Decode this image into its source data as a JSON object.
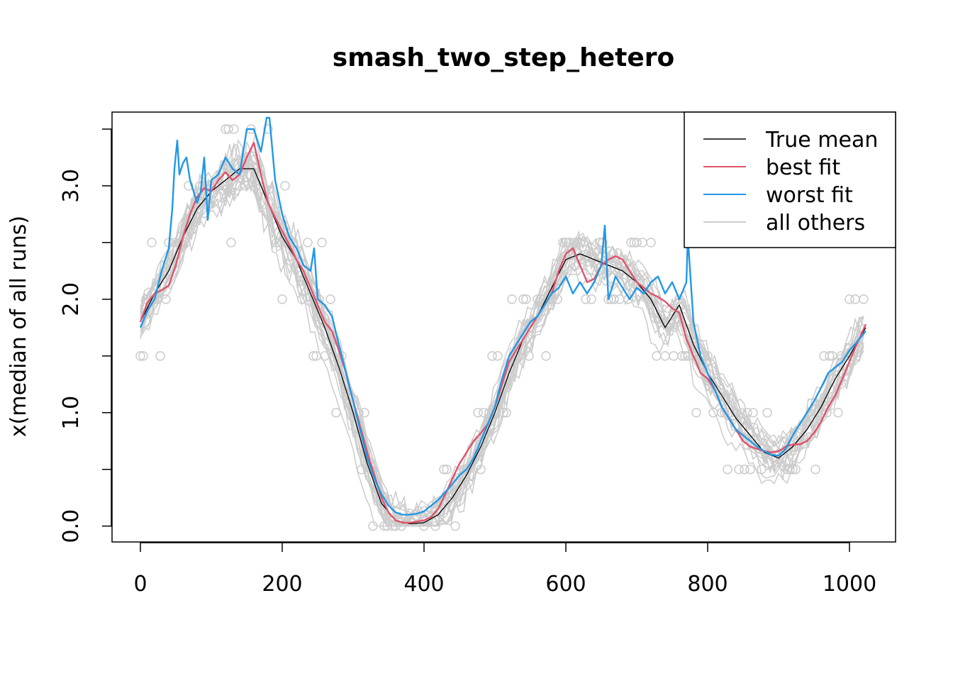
{
  "chart_data": {
    "type": "line",
    "title": "smash_two_step_hetero",
    "xlabel": "",
    "ylabel": "x(median of all runs)",
    "xlim": [
      -40,
      1065
    ],
    "ylim": [
      -0.14,
      3.65
    ],
    "x_ticks": [
      0,
      200,
      400,
      600,
      800,
      1000
    ],
    "x_tick_labels": [
      "0",
      "200",
      "400",
      "600",
      "800",
      "1000"
    ],
    "y_ticks": [
      0.0,
      0.5,
      1.0,
      1.5,
      2.0,
      2.5,
      3.0,
      3.5
    ],
    "y_tick_labels": [
      "0.0",
      "1.0",
      "2.0",
      "3.0"
    ],
    "y_labeled_ticks": [
      0.0,
      1.0,
      2.0,
      3.0
    ],
    "grid": false,
    "legend": {
      "position": "top-right",
      "entries": [
        {
          "label": "True mean",
          "color": "#000000"
        },
        {
          "label": "best fit",
          "color": "#DF536B"
        },
        {
          "label": "worst fit",
          "color": "#2297E6"
        },
        {
          "label": "all others",
          "color": "#CCCCCC"
        }
      ]
    },
    "colors": {
      "true_mean": "#000000",
      "best_fit": "#DF536B",
      "worst_fit": "#2297E6",
      "others": "#CCCCCC"
    },
    "series": [
      {
        "name": "True mean",
        "x": [
          0,
          20,
          40,
          60,
          80,
          100,
          120,
          140,
          160,
          180,
          200,
          220,
          240,
          260,
          280,
          300,
          320,
          340,
          360,
          380,
          400,
          420,
          440,
          460,
          480,
          500,
          520,
          540,
          560,
          580,
          600,
          620,
          640,
          660,
          680,
          700,
          720,
          740,
          760,
          780,
          800,
          820,
          840,
          860,
          880,
          900,
          920,
          940,
          960,
          980,
          1000,
          1023
        ],
        "values": [
          1.8,
          2.05,
          2.25,
          2.55,
          2.8,
          2.95,
          3.05,
          3.15,
          3.15,
          2.85,
          2.55,
          2.35,
          2.05,
          1.75,
          1.4,
          1.0,
          0.55,
          0.2,
          0.05,
          0.02,
          0.03,
          0.1,
          0.25,
          0.45,
          0.7,
          1.0,
          1.35,
          1.65,
          1.85,
          2.1,
          2.35,
          2.4,
          2.35,
          2.3,
          2.25,
          2.15,
          2.0,
          1.75,
          1.95,
          1.6,
          1.35,
          1.15,
          0.95,
          0.8,
          0.65,
          0.6,
          0.7,
          0.85,
          1.05,
          1.3,
          1.5,
          1.75
        ]
      },
      {
        "name": "best fit",
        "x": [
          0,
          10,
          20,
          30,
          40,
          50,
          60,
          70,
          80,
          90,
          100,
          110,
          120,
          130,
          140,
          150,
          160,
          170,
          180,
          190,
          200,
          210,
          220,
          230,
          240,
          250,
          260,
          270,
          280,
          290,
          300,
          310,
          320,
          330,
          340,
          350,
          360,
          370,
          380,
          390,
          400,
          410,
          420,
          430,
          440,
          450,
          460,
          470,
          480,
          490,
          500,
          510,
          520,
          530,
          540,
          550,
          560,
          570,
          580,
          590,
          600,
          610,
          620,
          630,
          640,
          650,
          660,
          670,
          680,
          690,
          700,
          710,
          720,
          730,
          740,
          750,
          760,
          770,
          780,
          790,
          800,
          810,
          820,
          830,
          840,
          850,
          860,
          870,
          880,
          890,
          900,
          910,
          920,
          930,
          940,
          950,
          960,
          970,
          980,
          990,
          1000,
          1010,
          1023
        ],
        "values": [
          1.8,
          1.97,
          2.05,
          2.08,
          2.12,
          2.3,
          2.55,
          2.75,
          2.9,
          2.98,
          2.95,
          3.05,
          3.12,
          3.05,
          3.1,
          3.25,
          3.38,
          3.1,
          2.85,
          2.72,
          2.6,
          2.48,
          2.35,
          2.25,
          2.1,
          1.95,
          1.8,
          1.72,
          1.55,
          1.35,
          1.1,
          0.88,
          0.65,
          0.45,
          0.25,
          0.12,
          0.05,
          0.03,
          0.03,
          0.04,
          0.05,
          0.08,
          0.15,
          0.28,
          0.42,
          0.55,
          0.65,
          0.75,
          0.82,
          0.9,
          1.05,
          1.25,
          1.45,
          1.55,
          1.65,
          1.75,
          1.85,
          1.95,
          2.05,
          2.25,
          2.4,
          2.45,
          2.3,
          2.15,
          2.18,
          2.3,
          2.35,
          2.38,
          2.35,
          2.25,
          2.15,
          2.1,
          2.05,
          2.02,
          1.98,
          1.92,
          1.88,
          1.65,
          1.5,
          1.35,
          1.3,
          1.2,
          1.05,
          0.95,
          0.85,
          0.75,
          0.7,
          0.68,
          0.66,
          0.65,
          0.66,
          0.7,
          0.72,
          0.72,
          0.75,
          0.82,
          0.92,
          1.05,
          1.15,
          1.3,
          1.45,
          1.6,
          1.78
        ]
      },
      {
        "name": "worst fit",
        "x": [
          0,
          10,
          20,
          30,
          40,
          45,
          48,
          52,
          55,
          60,
          65,
          70,
          80,
          85,
          90,
          95,
          100,
          110,
          120,
          130,
          140,
          150,
          160,
          170,
          178,
          182,
          190,
          200,
          210,
          220,
          230,
          240,
          245,
          250,
          260,
          270,
          280,
          290,
          300,
          310,
          320,
          330,
          340,
          350,
          360,
          370,
          380,
          390,
          400,
          410,
          420,
          430,
          440,
          450,
          460,
          470,
          480,
          490,
          500,
          510,
          520,
          530,
          540,
          550,
          560,
          570,
          580,
          590,
          600,
          610,
          620,
          630,
          640,
          650,
          655,
          660,
          670,
          680,
          690,
          700,
          710,
          720,
          730,
          740,
          750,
          760,
          770,
          772,
          780,
          790,
          800,
          810,
          820,
          830,
          840,
          850,
          860,
          870,
          880,
          890,
          900,
          910,
          920,
          930,
          940,
          950,
          960,
          970,
          980,
          990,
          1000,
          1010,
          1023
        ],
        "values": [
          1.75,
          1.9,
          2.0,
          2.25,
          2.45,
          2.8,
          3.15,
          3.4,
          3.1,
          3.2,
          3.25,
          3.05,
          2.85,
          2.95,
          3.25,
          2.7,
          3.05,
          3.1,
          3.25,
          3.15,
          3.1,
          3.5,
          3.5,
          3.3,
          3.6,
          3.6,
          3.05,
          2.75,
          2.55,
          2.45,
          2.3,
          2.25,
          2.45,
          2.0,
          1.95,
          1.85,
          1.6,
          1.35,
          1.1,
          0.85,
          0.6,
          0.42,
          0.28,
          0.18,
          0.12,
          0.1,
          0.1,
          0.11,
          0.13,
          0.18,
          0.23,
          0.3,
          0.37,
          0.45,
          0.5,
          0.6,
          0.75,
          0.9,
          1.05,
          1.3,
          1.5,
          1.6,
          1.7,
          1.8,
          1.85,
          1.95,
          2.05,
          2.1,
          2.2,
          2.05,
          2.15,
          2.05,
          2.15,
          2.3,
          2.65,
          2.0,
          2.2,
          2.1,
          2.0,
          2.1,
          2.05,
          2.15,
          2.2,
          2.05,
          2.15,
          2.0,
          2.15,
          2.55,
          1.8,
          1.5,
          1.35,
          1.2,
          1.05,
          0.95,
          0.85,
          0.8,
          0.75,
          0.7,
          0.66,
          0.63,
          0.62,
          0.68,
          0.8,
          0.9,
          1.0,
          1.1,
          1.22,
          1.35,
          1.4,
          1.45,
          1.55,
          1.62,
          1.72
        ]
      }
    ],
    "others_note": "Grey lines: many other runs, scattered around the true mean; grey circles: observed data points at values 0, 0.5, 1, 1.5, 2, 2.5, 3, 3.5"
  }
}
